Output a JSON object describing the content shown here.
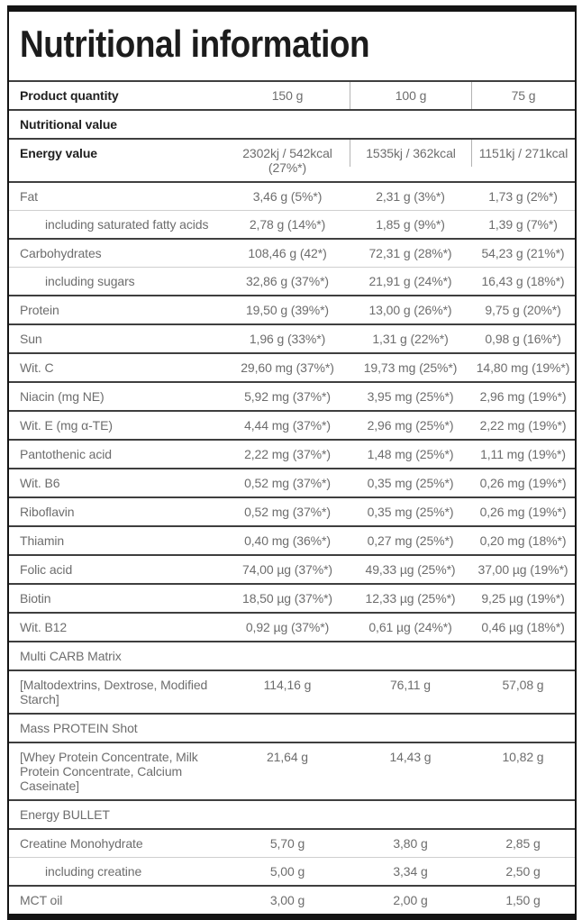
{
  "title": "Nutritional information",
  "colors": {
    "frame_border": "#141414",
    "dark_separator": "#3f3f3f",
    "light_separator": "#cfcfcf",
    "text_strong": "#1f1f1f",
    "text_muted": "#6d6d6d"
  },
  "table": {
    "rows": [
      {
        "label": "Product quantity",
        "bold": true,
        "vlines": true,
        "values": [
          "150 g",
          "100 g",
          "75 g"
        ]
      },
      {
        "label": "Nutritional value",
        "section": true,
        "bold": true
      },
      {
        "label": "Energy value",
        "bold": true,
        "vlines": true,
        "values": [
          "2302kj / 542kcal (27%*)",
          "1535kj / 362kcal",
          "1151kj / 271kcal"
        ]
      },
      {
        "label": "Fat",
        "values": [
          "3,46 g (5%*)",
          "2,31 g (3%*)",
          "1,73 g (2%*)"
        ]
      },
      {
        "label": "including saturated fatty acids",
        "indent": true,
        "light": true,
        "values": [
          "2,78 g (14%*)",
          "1,85 g (9%*)",
          "1,39 g (7%*)"
        ]
      },
      {
        "label": "Carbohydrates",
        "values": [
          "108,46 g (42*)",
          "72,31 g (28%*)",
          "54,23 g (21%*)"
        ]
      },
      {
        "label": "including sugars",
        "indent": true,
        "light": true,
        "values": [
          "32,86 g (37%*)",
          "21,91 g (24%*)",
          "16,43 g (18%*)"
        ]
      },
      {
        "label": "Protein",
        "values": [
          "19,50 g (39%*)",
          "13,00 g (26%*)",
          "9,75 g (20%*)"
        ]
      },
      {
        "label": "Sun",
        "values": [
          "1,96 g (33%*)",
          "1,31 g (22%*)",
          "0,98 g (16%*)"
        ]
      },
      {
        "label": "Wit. C",
        "values": [
          "29,60 mg (37%*)",
          "19,73 mg (25%*)",
          "14,80 mg (19%*)"
        ]
      },
      {
        "label": "Niacin (mg NE)",
        "values": [
          "5,92 mg (37%*)",
          "3,95 mg (25%*)",
          "2,96 mg (19%*)"
        ]
      },
      {
        "label": "Wit. E (mg α-TE)",
        "values": [
          "4,44 mg (37%*)",
          "2,96 mg (25%*)",
          "2,22 mg (19%*)"
        ]
      },
      {
        "label": "Pantothenic acid",
        "values": [
          "2,22 mg (37%*)",
          "1,48 mg (25%*)",
          "1,11 mg (19%*)"
        ]
      },
      {
        "label": "Wit. B6",
        "values": [
          "0,52 mg (37%*)",
          "0,35 mg (25%*)",
          "0,26 mg (19%*)"
        ]
      },
      {
        "label": "Riboflavin",
        "values": [
          "0,52 mg (37%*)",
          "0,35 mg (25%*)",
          "0,26 mg (19%*)"
        ]
      },
      {
        "label": "Thiamin",
        "values": [
          "0,40 mg (36%*)",
          "0,27 mg (25%*)",
          "0,20 mg (18%*)"
        ]
      },
      {
        "label": "Folic acid",
        "values": [
          "74,00 µg (37%*)",
          "49,33 µg (25%*)",
          "37,00 µg (19%*)"
        ]
      },
      {
        "label": "Biotin",
        "values": [
          "18,50 µg (37%*)",
          "12,33 µg (25%*)",
          "9,25 µg (19%*)"
        ]
      },
      {
        "label": "Wit. B12",
        "values": [
          "0,92 µg (37%*)",
          "0,61 µg (24%*)",
          "0,46 µg (18%*)"
        ]
      },
      {
        "label": "Multi CARB Matrix",
        "section": true
      },
      {
        "label": "[Maltodextrins, Dextrose, Modified Starch]",
        "values": [
          "114,16 g",
          "76,11 g",
          "57,08 g"
        ]
      },
      {
        "label": "Mass PROTEIN Shot",
        "section": true
      },
      {
        "label": "[Whey Protein Concentrate, Milk Protein Concentrate, Calcium Caseinate]",
        "values": [
          "21,64 g",
          "14,43 g",
          "10,82 g"
        ]
      },
      {
        "label": "Energy BULLET",
        "section": true
      },
      {
        "label": "Creatine Monohydrate",
        "values": [
          "5,70 g",
          "3,80 g",
          "2,85 g"
        ]
      },
      {
        "label": "including creatine",
        "indent": true,
        "light": true,
        "values": [
          "5,00 g",
          "3,34 g",
          "2,50 g"
        ]
      },
      {
        "label": "MCT oil",
        "values": [
          "3,00 g",
          "2,00 g",
          "1,50 g"
        ]
      }
    ]
  }
}
